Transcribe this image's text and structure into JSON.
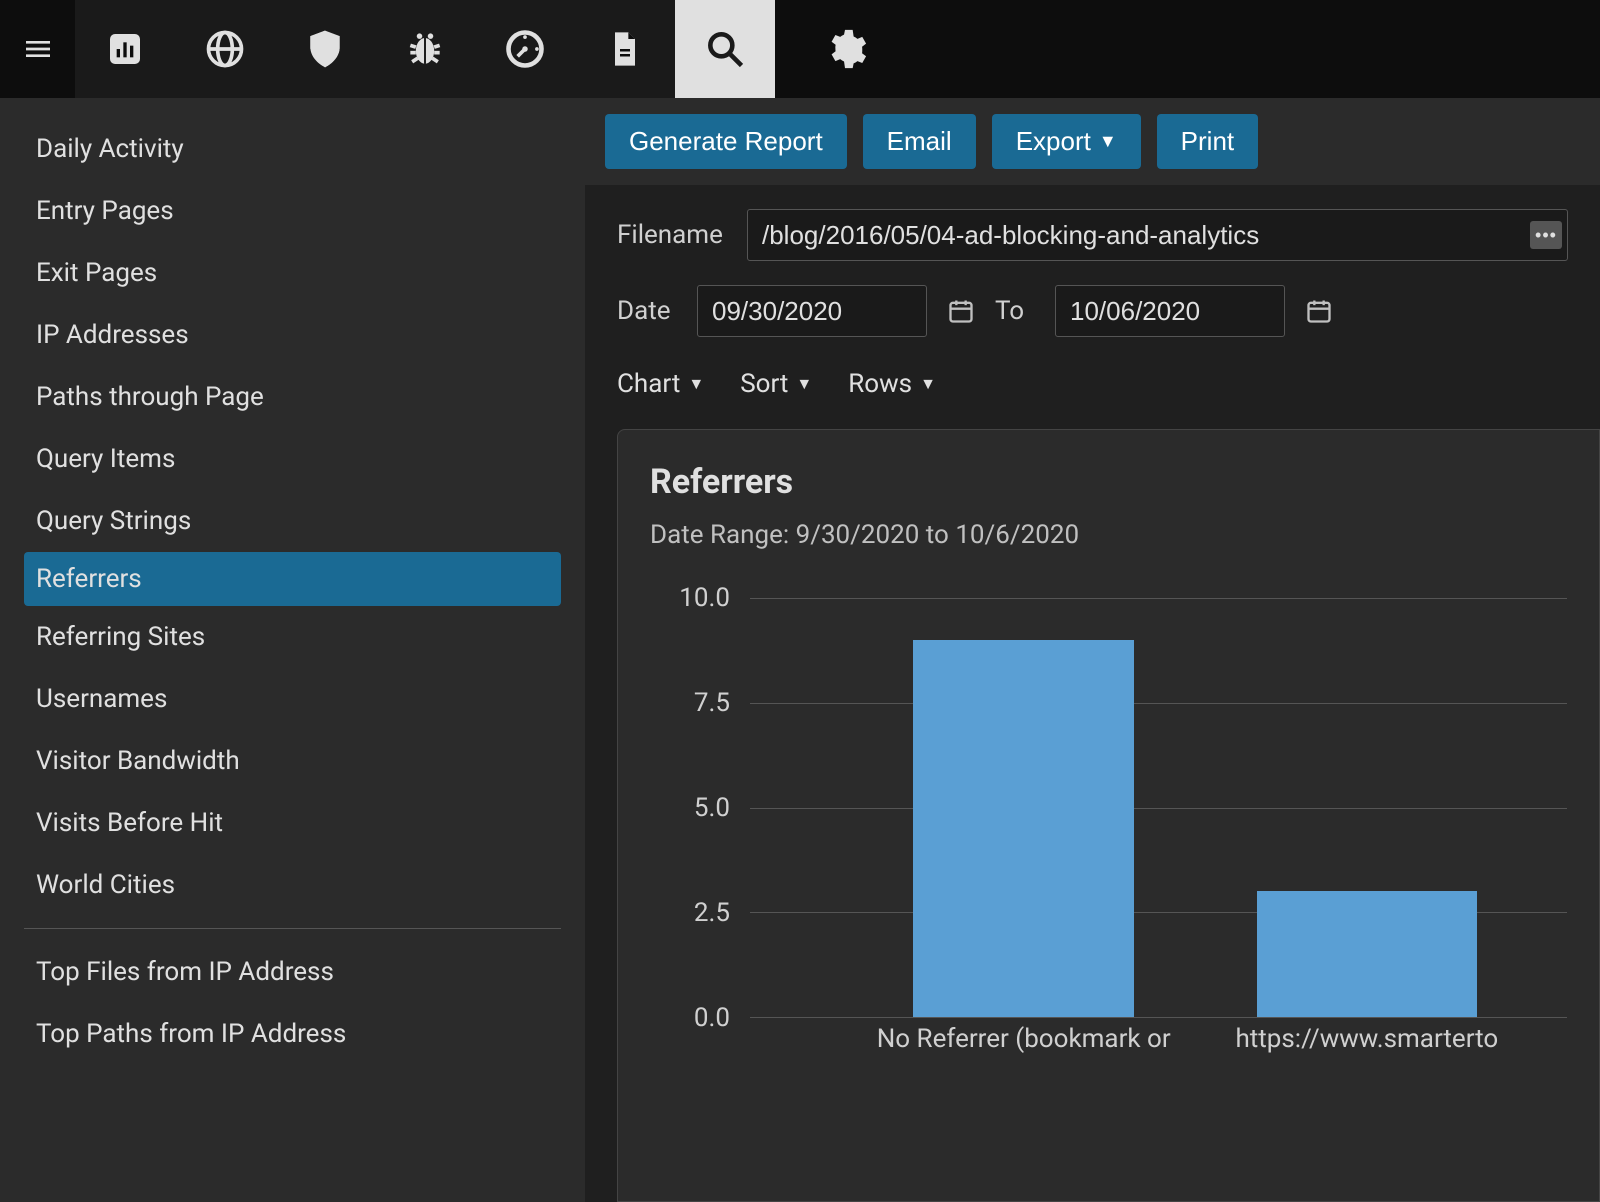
{
  "topnav": {
    "tabs": [
      "chart",
      "globe",
      "shield",
      "bug",
      "compass",
      "document",
      "search"
    ],
    "active_index": 6
  },
  "sidebar": {
    "items": [
      {
        "label": "Daily Activity",
        "active": false
      },
      {
        "label": "Entry Pages",
        "active": false
      },
      {
        "label": "Exit Pages",
        "active": false
      },
      {
        "label": "IP Addresses",
        "active": false
      },
      {
        "label": "Paths through Page",
        "active": false
      },
      {
        "label": "Query Items",
        "active": false
      },
      {
        "label": "Query Strings",
        "active": false
      },
      {
        "label": "Referrers",
        "active": true
      },
      {
        "label": "Referring Sites",
        "active": false
      },
      {
        "label": "Usernames",
        "active": false
      },
      {
        "label": "Visitor Bandwidth",
        "active": false
      },
      {
        "label": "Visits Before Hit",
        "active": false
      },
      {
        "label": "World Cities",
        "active": false
      }
    ],
    "secondary": [
      {
        "label": "Top Files from IP Address"
      },
      {
        "label": "Top Paths from IP Address"
      }
    ]
  },
  "actions": {
    "generate": "Generate Report",
    "email": "Email",
    "export": "Export",
    "print": "Print"
  },
  "filters": {
    "filename_label": "Filename",
    "filename_value": "/blog/2016/05/04-ad-blocking-and-analytics",
    "date_label": "Date",
    "date_from": "09/30/2020",
    "to_label": "To",
    "date_to": "10/06/2020",
    "chart_label": "Chart",
    "sort_label": "Sort",
    "rows_label": "Rows"
  },
  "chart": {
    "title": "Referrers",
    "subtitle": "Date Range: 9/30/2020 to 10/6/2020",
    "type": "bar",
    "ylim": [
      0,
      10
    ],
    "ytick_step": 2.5,
    "yticks": [
      "0.0",
      "2.5",
      "5.0",
      "7.5",
      "10.0"
    ],
    "bar_color": "#5a9fd4",
    "grid_color": "#555555",
    "background_color": "#2b2b2b",
    "bars": [
      {
        "label": "No Referrer (bookmark or",
        "value": 9.0,
        "x_percent": 20,
        "width_percent": 27
      },
      {
        "label": "https://www.smarterto",
        "value": 3.0,
        "x_percent": 62,
        "width_percent": 27
      }
    ]
  },
  "colors": {
    "accent": "#1a6a94",
    "bar": "#5a9fd4"
  }
}
